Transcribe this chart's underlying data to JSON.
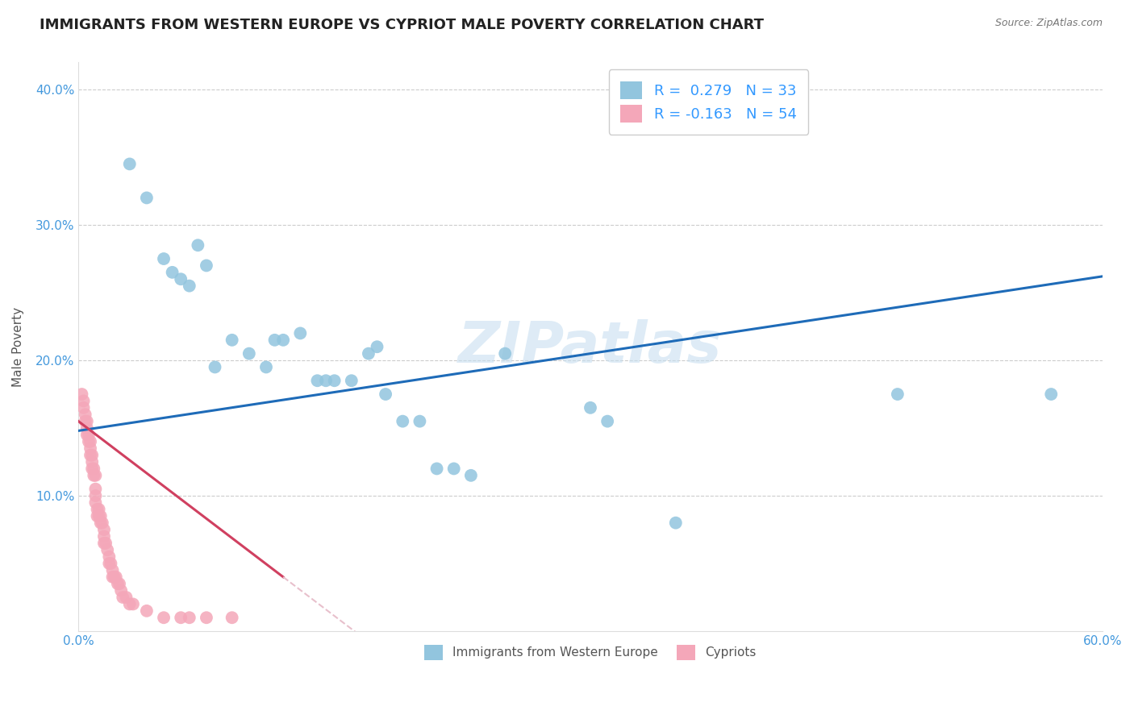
{
  "title": "IMMIGRANTS FROM WESTERN EUROPE VS CYPRIOT MALE POVERTY CORRELATION CHART",
  "source": "Source: ZipAtlas.com",
  "ylabel": "Male Poverty",
  "xlim": [
    0.0,
    0.6
  ],
  "ylim": [
    0.0,
    0.42
  ],
  "yticks": [
    0.1,
    0.2,
    0.3,
    0.4
  ],
  "ytick_labels": [
    "10.0%",
    "20.0%",
    "30.0%",
    "40.0%"
  ],
  "blue_R": 0.279,
  "blue_N": 33,
  "pink_R": -0.163,
  "pink_N": 54,
  "blue_scatter_x": [
    0.03,
    0.04,
    0.05,
    0.055,
    0.06,
    0.065,
    0.07,
    0.075,
    0.08,
    0.09,
    0.1,
    0.11,
    0.115,
    0.12,
    0.13,
    0.14,
    0.145,
    0.15,
    0.16,
    0.17,
    0.175,
    0.18,
    0.19,
    0.2,
    0.21,
    0.22,
    0.23,
    0.25,
    0.3,
    0.31,
    0.35,
    0.48,
    0.57
  ],
  "blue_scatter_y": [
    0.345,
    0.32,
    0.275,
    0.265,
    0.26,
    0.255,
    0.285,
    0.27,
    0.195,
    0.215,
    0.205,
    0.195,
    0.215,
    0.215,
    0.22,
    0.185,
    0.185,
    0.185,
    0.185,
    0.205,
    0.21,
    0.175,
    0.155,
    0.155,
    0.12,
    0.12,
    0.115,
    0.205,
    0.165,
    0.155,
    0.08,
    0.175,
    0.175
  ],
  "pink_scatter_x": [
    0.002,
    0.003,
    0.003,
    0.004,
    0.004,
    0.005,
    0.005,
    0.005,
    0.006,
    0.006,
    0.007,
    0.007,
    0.007,
    0.008,
    0.008,
    0.008,
    0.009,
    0.009,
    0.01,
    0.01,
    0.01,
    0.01,
    0.011,
    0.011,
    0.012,
    0.012,
    0.013,
    0.013,
    0.014,
    0.015,
    0.015,
    0.015,
    0.016,
    0.017,
    0.018,
    0.018,
    0.019,
    0.02,
    0.02,
    0.021,
    0.022,
    0.023,
    0.024,
    0.025,
    0.026,
    0.028,
    0.03,
    0.032,
    0.04,
    0.05,
    0.06,
    0.065,
    0.075,
    0.09
  ],
  "pink_scatter_y": [
    0.175,
    0.17,
    0.165,
    0.16,
    0.155,
    0.15,
    0.155,
    0.145,
    0.145,
    0.14,
    0.14,
    0.135,
    0.13,
    0.125,
    0.12,
    0.13,
    0.12,
    0.115,
    0.115,
    0.105,
    0.1,
    0.095,
    0.09,
    0.085,
    0.09,
    0.085,
    0.085,
    0.08,
    0.08,
    0.075,
    0.07,
    0.065,
    0.065,
    0.06,
    0.055,
    0.05,
    0.05,
    0.045,
    0.04,
    0.04,
    0.04,
    0.035,
    0.035,
    0.03,
    0.025,
    0.025,
    0.02,
    0.02,
    0.015,
    0.01,
    0.01,
    0.01,
    0.01,
    0.01
  ],
  "blue_line_start_x": 0.0,
  "blue_line_end_x": 0.6,
  "blue_line_start_y": 0.148,
  "blue_line_end_y": 0.262,
  "pink_line_start_x": 0.0,
  "pink_line_end_x": 0.12,
  "pink_line_start_y": 0.155,
  "pink_line_end_y": 0.04,
  "blue_color": "#92C5DE",
  "pink_color": "#F4A7B9",
  "blue_line_color": "#1E6BB8",
  "pink_line_color": "#D04060",
  "pink_dash_color": "#E8C0CC",
  "watermark": "ZIPatlas",
  "background_color": "#FFFFFF",
  "grid_color": "#CCCCCC"
}
